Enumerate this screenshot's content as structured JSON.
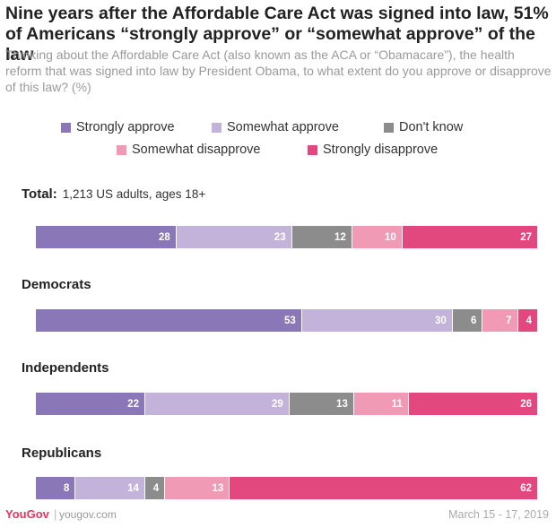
{
  "title": "Nine years after the Affordable Care Act was signed into law, 51% of Americans “strongly approve” or “somewhat approve” of the law",
  "subtitle": "Thinking about the Affordable Care Act (also known as the ACA or “Obamacare”), the health reform that was signed into law by President Obama, to what extent do you approve or disapprove of this law? (%)",
  "footer": {
    "logo": "YouGov",
    "separator": "|",
    "site": "yougov.com",
    "date": "March 15 - 17, 2019"
  },
  "legend": [
    {
      "name": "Strongly approve",
      "color": "#8a77b8"
    },
    {
      "name": "Somewhat approve",
      "color": "#c3b3db"
    },
    {
      "name": "Don't know",
      "color": "#8c8c8c"
    },
    {
      "name": "Somewhat disapprove",
      "color": "#f09ab6"
    },
    {
      "name": "Strongly disapprove",
      "color": "#e2477d"
    }
  ],
  "chart_data": {
    "type": "bar",
    "orientation": "horizontal",
    "stacked": true,
    "unit": "%",
    "categories": [
      "Total:",
      "Democrats",
      "Independents",
      "Republicans"
    ],
    "category_notes": [
      "1,213 US adults, ages 18+",
      "",
      "",
      ""
    ],
    "series": [
      {
        "name": "Strongly approve",
        "color": "#8a77b8",
        "values": [
          28,
          53,
          22,
          8
        ]
      },
      {
        "name": "Somewhat approve",
        "color": "#c3b3db",
        "values": [
          23,
          30,
          29,
          14
        ]
      },
      {
        "name": "Don't know",
        "color": "#8c8c8c",
        "values": [
          12,
          6,
          13,
          4
        ]
      },
      {
        "name": "Somewhat disapprove",
        "color": "#f09ab6",
        "values": [
          10,
          7,
          11,
          13
        ]
      },
      {
        "name": "Strongly disapprove",
        "color": "#e2477d",
        "values": [
          27,
          4,
          26,
          62
        ]
      }
    ],
    "legend_position": "top",
    "grid": false
  }
}
